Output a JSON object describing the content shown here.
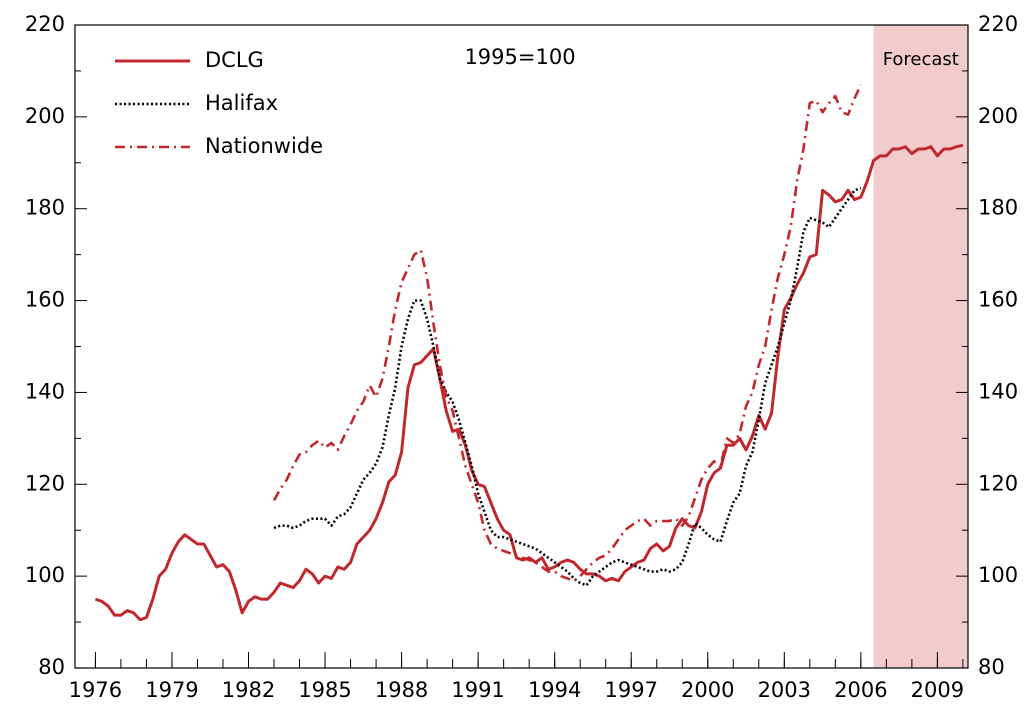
{
  "chart_data": {
    "type": "line",
    "annotation": "1995=100",
    "x": [
      1976,
      1976.25,
      1976.5,
      1976.75,
      1977,
      1977.25,
      1977.5,
      1977.75,
      1978,
      1978.25,
      1978.5,
      1978.75,
      1979,
      1979.25,
      1979.5,
      1979.75,
      1980,
      1980.25,
      1980.5,
      1980.75,
      1981,
      1981.25,
      1981.5,
      1981.75,
      1982,
      1982.25,
      1982.5,
      1982.75,
      1983,
      1983.25,
      1983.5,
      1983.75,
      1984,
      1984.25,
      1984.5,
      1984.75,
      1985,
      1985.25,
      1985.5,
      1985.75,
      1986,
      1986.25,
      1986.5,
      1986.75,
      1987,
      1987.25,
      1987.5,
      1987.75,
      1988,
      1988.25,
      1988.5,
      1988.75,
      1989,
      1989.25,
      1989.5,
      1989.75,
      1990,
      1990.25,
      1990.5,
      1990.75,
      1991,
      1991.25,
      1991.5,
      1991.75,
      1992,
      1992.25,
      1992.5,
      1992.75,
      1993,
      1993.25,
      1993.5,
      1993.75,
      1994,
      1994.25,
      1994.5,
      1994.75,
      1995,
      1995.25,
      1995.5,
      1995.75,
      1996,
      1996.25,
      1996.5,
      1996.75,
      1997,
      1997.25,
      1997.5,
      1997.75,
      1998,
      1998.25,
      1998.5,
      1998.75,
      1999,
      1999.25,
      1999.5,
      1999.75,
      2000,
      2000.25,
      2000.5,
      2000.75,
      2001,
      2001.25,
      2001.5,
      2001.75,
      2002,
      2002.25,
      2002.5,
      2002.75,
      2003,
      2003.25,
      2003.5,
      2003.75,
      2004,
      2004.25,
      2004.5,
      2004.75,
      2005,
      2005.25,
      2005.5,
      2005.75,
      2006,
      2006.25,
      2006.5,
      2006.75,
      2007,
      2007.25,
      2007.5,
      2007.75,
      2008,
      2008.25,
      2008.5,
      2008.75,
      2009,
      2009.25,
      2009.5,
      2009.75,
      2010
    ],
    "series": [
      {
        "name": "DCLG",
        "color": "#c0282d",
        "style": "solid",
        "values": [
          95,
          94.5,
          93.5,
          91.5,
          91.5,
          92.5,
          92,
          90.5,
          91,
          95,
          100,
          101.5,
          105,
          107.5,
          109,
          108,
          107,
          107,
          104.5,
          102,
          102.5,
          101,
          97,
          92,
          94.5,
          95.5,
          95,
          95,
          96.5,
          98.5,
          98,
          97.5,
          99,
          101.5,
          100.5,
          98.5,
          100,
          99.5,
          102,
          101.5,
          103,
          107,
          108.5,
          110,
          112.5,
          116,
          120.5,
          122,
          127,
          141,
          146,
          146.5,
          148,
          149.5,
          143,
          136,
          131.5,
          132,
          128.5,
          123,
          120,
          119.5,
          116,
          112.5,
          110,
          109,
          104,
          103.5,
          104,
          103,
          104,
          101.5,
          102,
          103,
          103.5,
          103,
          101.5,
          100.5,
          100.5,
          100,
          99,
          99.5,
          99,
          101,
          102,
          103,
          103.5,
          106,
          107,
          105.5,
          106.5,
          110.5,
          112.5,
          111,
          110.5,
          114,
          120,
          122.5,
          123.5,
          128.5,
          128.5,
          130,
          127.5,
          130.5,
          135,
          132,
          135.5,
          148,
          158,
          160.5,
          163.5,
          166,
          169.5,
          170,
          184,
          183,
          181.5,
          182,
          184,
          182,
          182.5,
          186,
          190.5,
          191.5,
          191.5,
          193,
          193,
          193.5,
          192,
          193,
          193,
          193.5,
          191.5,
          193,
          193,
          193.5,
          193.8
        ]
      },
      {
        "name": "Halifax",
        "color": "#000000",
        "style": "dotted",
        "values": [
          null,
          null,
          null,
          null,
          null,
          null,
          null,
          null,
          null,
          null,
          null,
          null,
          null,
          null,
          null,
          null,
          null,
          null,
          null,
          null,
          null,
          null,
          null,
          null,
          null,
          null,
          null,
          null,
          110.5,
          111,
          111,
          110.5,
          111,
          112,
          112.5,
          112.5,
          112.5,
          111,
          113,
          113.5,
          115,
          118,
          121,
          122.5,
          124.5,
          128,
          135,
          141,
          150,
          156,
          160,
          160,
          156,
          150,
          143,
          140,
          138,
          134,
          129,
          124,
          118,
          114,
          110,
          108.5,
          108.5,
          108,
          107.5,
          107,
          106.5,
          106,
          105,
          104,
          103,
          102,
          101,
          99.5,
          98.5,
          98,
          100,
          101,
          102,
          103,
          103.5,
          103,
          102.5,
          102,
          101.5,
          101,
          101,
          101.5,
          101,
          101.5,
          103,
          107,
          111.5,
          110.5,
          109,
          108,
          107.5,
          112,
          116,
          118,
          124,
          127,
          134,
          142,
          146,
          150,
          155,
          160,
          167,
          175,
          178,
          177.5,
          177,
          176,
          178,
          180,
          182,
          184,
          184.5,
          null,
          null,
          null,
          null,
          null,
          null,
          null,
          null,
          null,
          null,
          null,
          null,
          null,
          null,
          null,
          null
        ]
      },
      {
        "name": "Nationwide",
        "color": "#c0282d",
        "style": "dashdot",
        "values": [
          null,
          null,
          null,
          null,
          null,
          null,
          null,
          null,
          null,
          null,
          null,
          null,
          null,
          null,
          null,
          null,
          null,
          null,
          null,
          null,
          null,
          null,
          null,
          null,
          null,
          null,
          null,
          null,
          116.5,
          119,
          121,
          124,
          126.5,
          127,
          128.5,
          129.5,
          128,
          129,
          127.5,
          130.5,
          133,
          136,
          138,
          141.5,
          139,
          143,
          150,
          158,
          164,
          167,
          170,
          171,
          165,
          155,
          146,
          139,
          136,
          130,
          124,
          120,
          116,
          110,
          107,
          106,
          105.5,
          105,
          104.5,
          104,
          103.5,
          103,
          102,
          101,
          101,
          100,
          99.5,
          99,
          100,
          101.5,
          103,
          104,
          104.5,
          106,
          108,
          110,
          111,
          112,
          112.5,
          111,
          112,
          112,
          112,
          112.5,
          111,
          113,
          117,
          121,
          123.5,
          125,
          124,
          130,
          129,
          131,
          137,
          140,
          146,
          150,
          158,
          165,
          170,
          176,
          186,
          193,
          203,
          203.5,
          201,
          203,
          204.5,
          201,
          200.5,
          204,
          207,
          null,
          null,
          null,
          null,
          null,
          null,
          null,
          null,
          null,
          null,
          null,
          null,
          null,
          null,
          null,
          null
        ]
      }
    ],
    "shaded_region": {
      "label": "Forecast",
      "x": [
        2006.5,
        2010.2
      ],
      "color": "#f2cccc"
    },
    "xlim": [
      1975.2,
      2010.2
    ],
    "xticks": [
      1976,
      1979,
      1982,
      1985,
      1988,
      1991,
      1994,
      1997,
      2000,
      2003,
      2006,
      2009
    ],
    "xminor_ticks": [
      1976,
      1977,
      1978,
      1979,
      1980,
      1981,
      1982,
      1983,
      1984,
      1985,
      1986,
      1987,
      1988,
      1989,
      1990,
      1991,
      1992,
      1993,
      1994,
      1995,
      1996,
      1997,
      1998,
      1999,
      2000,
      2001,
      2002,
      2003,
      2004,
      2005,
      2006,
      2007,
      2008,
      2009,
      2010
    ],
    "ylim": [
      80,
      220
    ],
    "yticks": [
      80,
      100,
      120,
      140,
      160,
      180,
      200,
      220
    ],
    "yminor_ticks": [
      90,
      110,
      130,
      150,
      170,
      190,
      210
    ],
    "y2lim": [
      80,
      220
    ],
    "y2ticks": [
      80,
      100,
      120,
      140,
      160,
      180,
      200,
      220
    ],
    "grid": false,
    "legend": "upper left"
  }
}
